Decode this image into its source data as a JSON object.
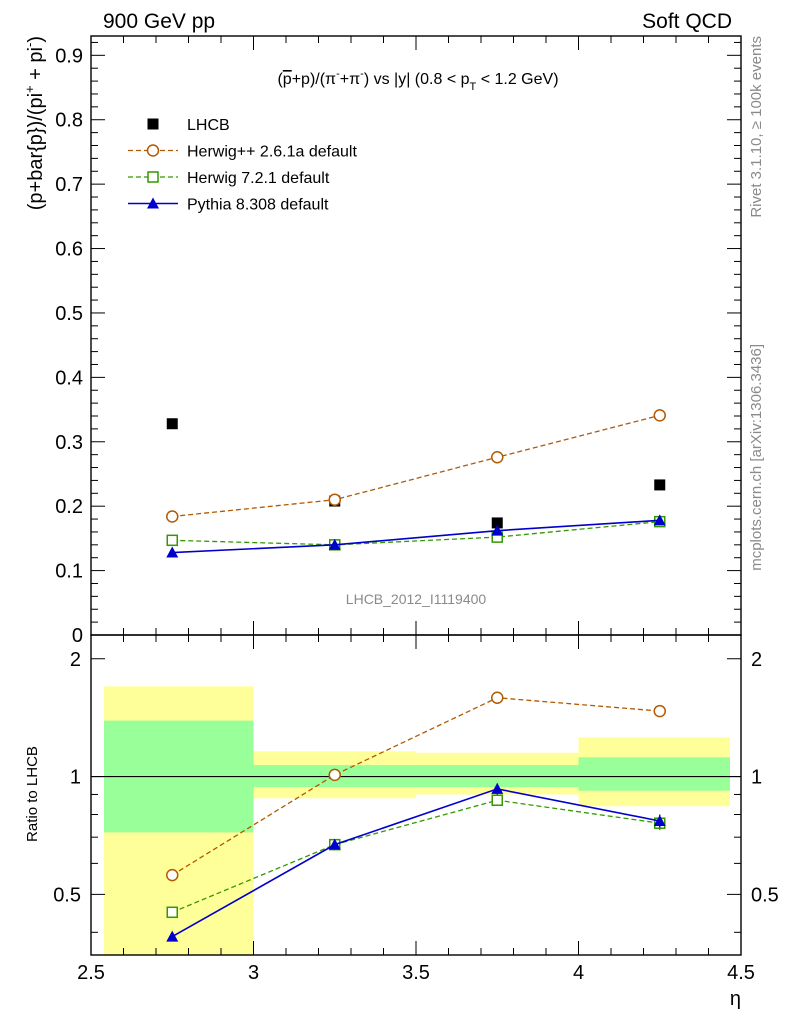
{
  "header": {
    "left": "900 GeV pp",
    "right": "Soft QCD"
  },
  "side": {
    "rivet": "Rivet 3.1.10, ≥ 100k events",
    "mcplots": "mcplots.cern.ch [arXiv:1306.3436]"
  },
  "chart_data": [
    {
      "type": "scatter",
      "title": "(p̅+p)/(π⁻+π⁺) vs |y| (0.8 < pT < 1.2 GeV)",
      "title_parts": {
        "pre": "(",
        "pbar": "p",
        "mid1": "+p)/(π",
        "sup1": "-",
        "mid2": "+π",
        "sup2": "-",
        "mid3": ") vs |y| (0.8 < p",
        "sub": "T",
        "post": " < 1.2 GeV)"
      },
      "ylabel": "(p+bar{p})/(pi⁺ + pi⁻)",
      "ylabel_parts": {
        "main": "(p+bar{p})/(pi",
        "sup1": "+",
        "mid": " + pi",
        "sup2": "-",
        "end": ")"
      },
      "watermark": "LHCB_2012_I1119400",
      "xlim": [
        2.5,
        4.5
      ],
      "ylim": [
        0,
        0.93
      ],
      "yticks": [
        "0",
        "0.1",
        "0.2",
        "0.3",
        "0.4",
        "0.5",
        "0.6",
        "0.7",
        "0.8",
        "0.9"
      ],
      "x": [
        2.75,
        3.25,
        3.75,
        4.25
      ],
      "legend_position": "top-left",
      "series": [
        {
          "name": "LHCB",
          "color": "#000000",
          "marker": "square-filled",
          "line": "none",
          "values": [
            0.328,
            0.208,
            0.174,
            0.233
          ]
        },
        {
          "name": "Herwig++ 2.6.1a default",
          "color": "#b35900",
          "marker": "circle-open",
          "line": "dashed",
          "values": [
            0.184,
            0.21,
            0.276,
            0.341
          ],
          "errors": [
            0.004,
            0.004,
            0.005,
            0.009
          ]
        },
        {
          "name": "Herwig 7.2.1 default",
          "color": "#339900",
          "marker": "square-open",
          "line": "dashed",
          "values": [
            0.147,
            0.14,
            0.152,
            0.176
          ],
          "errors": [
            0.003,
            0.003,
            0.004,
            0.006
          ]
        },
        {
          "name": "Pythia 8.308 default",
          "color": "#0000cc",
          "marker": "triangle-filled",
          "line": "solid",
          "values": [
            0.128,
            0.14,
            0.162,
            0.178
          ],
          "errors": [
            0.003,
            0.003,
            0.004,
            0.006
          ]
        }
      ]
    },
    {
      "type": "scatter",
      "ylabel": "Ratio to LHCB",
      "xlabel": "η",
      "xlim": [
        2.5,
        4.5
      ],
      "ylim": [
        0.35,
        2.3
      ],
      "xticks": [
        "2.5",
        "3",
        "3.5",
        "4",
        "4.5"
      ],
      "yticks": [
        "0.5",
        "1",
        "2"
      ],
      "band_edges": [
        2.5,
        3.0,
        3.5,
        4.0,
        4.5
      ],
      "yellow_band": [
        [
          0.35,
          1.7
        ],
        [
          0.88,
          1.16
        ],
        [
          0.9,
          1.15
        ],
        [
          0.84,
          1.26
        ]
      ],
      "green_band": [
        [
          0.72,
          1.39
        ],
        [
          0.94,
          1.07
        ],
        [
          0.94,
          1.07
        ],
        [
          0.92,
          1.12
        ]
      ],
      "x": [
        2.75,
        3.25,
        3.75,
        4.25
      ],
      "series": [
        {
          "name": "Herwig++ 2.6.1a default",
          "values": [
            0.56,
            1.01,
            1.59,
            1.47
          ],
          "errors": [
            0.01,
            0.02,
            0.03,
            0.04
          ]
        },
        {
          "name": "Herwig 7.2.1 default",
          "values": [
            0.45,
            0.67,
            0.87,
            0.76
          ],
          "errors": [
            0.01,
            0.01,
            0.02,
            0.03
          ]
        },
        {
          "name": "Pythia 8.308 default",
          "values": [
            0.39,
            0.67,
            0.93,
            0.77
          ],
          "errors": [
            0.01,
            0.01,
            0.03,
            0.03
          ]
        }
      ]
    }
  ]
}
